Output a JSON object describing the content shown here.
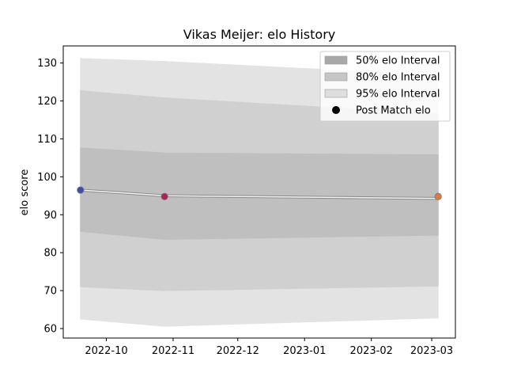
{
  "chart_data": {
    "type": "area",
    "title": "Vikas Meijer: elo History",
    "xlabel": "",
    "ylabel": "elo score",
    "x_dates": [
      "2022-09-19",
      "2022-10-28",
      "2023-03-04"
    ],
    "xlim": [
      "2022-09-11",
      "2023-03-12"
    ],
    "ylim": [
      57.5,
      134.5
    ],
    "x_ticks": [
      "2022-10-01",
      "2022-11-01",
      "2022-12-01",
      "2023-01-01",
      "2023-02-01",
      "2023-03-01"
    ],
    "x_tick_labels": [
      "2022-10",
      "2022-11",
      "2022-12",
      "2023-01",
      "2023-02",
      "2023-03"
    ],
    "y_ticks": [
      60,
      70,
      80,
      90,
      100,
      110,
      120,
      130
    ],
    "bands": [
      {
        "name": "95% elo Interval",
        "color": "#e3e3e3",
        "lower": [
          62.5,
          60.6,
          62.8
        ],
        "upper": [
          131.2,
          130.4,
          126.8
        ]
      },
      {
        "name": "80% elo Interval",
        "color": "#d0d0d0",
        "lower": [
          71.0,
          70.0,
          71.2
        ],
        "upper": [
          122.7,
          120.8,
          116.6
        ]
      },
      {
        "name": "50% elo Interval",
        "color": "#bfbfbf",
        "lower": [
          85.6,
          83.5,
          84.6
        ],
        "upper": [
          107.6,
          106.3,
          105.8
        ]
      }
    ],
    "mean_line": {
      "values": [
        96.5,
        95.0,
        94.3
      ],
      "color": "#f4f4f4"
    },
    "post_match": {
      "name": "Post Match elo",
      "values": [
        96.5,
        94.8,
        94.8
      ],
      "colors": [
        "#3b4ea8",
        "#b0205a",
        "#e07a3a"
      ]
    },
    "legend": {
      "placement": "upper right",
      "items": [
        {
          "label": "50% elo Interval",
          "swatch": "#a8a8a8"
        },
        {
          "label": "80% elo Interval",
          "swatch": "#c6c6c6"
        },
        {
          "label": "95% elo Interval",
          "swatch": "#dedede"
        },
        {
          "label": "Post Match elo",
          "swatch": "#000000"
        }
      ]
    },
    "grid": false
  }
}
